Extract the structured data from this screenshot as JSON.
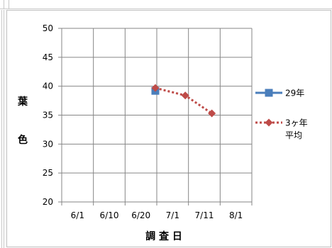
{
  "chart_data": {
    "type": "line",
    "ylabel_chars": [
      "葉",
      "色"
    ],
    "xlabel": "調 査 日",
    "ylim": [
      20,
      50
    ],
    "yticks": [
      20,
      25,
      30,
      35,
      40,
      45,
      50
    ],
    "xtick_labels": [
      "6/1",
      "6/10",
      "6/20",
      "7/1",
      "7/11",
      "8/1"
    ],
    "grid": true,
    "legend_position": "right",
    "series": [
      {
        "name": "29年",
        "color": "#4a7ebb",
        "marker": "square",
        "line": "solid",
        "x": [
          "6/25"
        ],
        "values": [
          39.2
        ]
      },
      {
        "name_lines": [
          "3ヶ年",
          "平均"
        ],
        "color": "#be4b48",
        "marker": "diamond",
        "line": "dotted",
        "x": [
          "6/25",
          "7/5",
          "7/16"
        ],
        "values": [
          39.7,
          38.4,
          35.3
        ]
      }
    ]
  }
}
